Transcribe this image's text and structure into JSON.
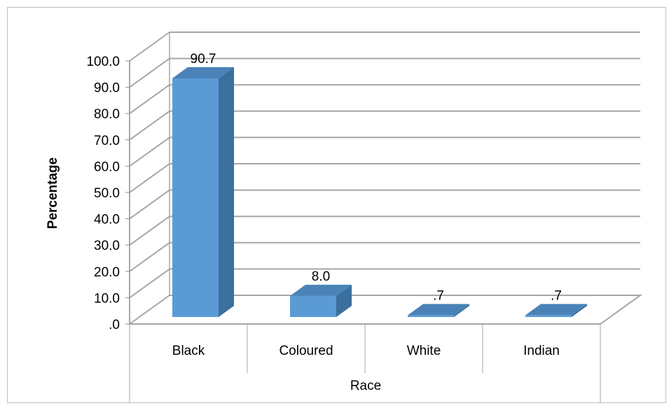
{
  "chart_data": {
    "type": "bar",
    "categories": [
      "Black",
      "Coloured",
      "White",
      "Indian"
    ],
    "values": [
      90.7,
      8.0,
      0.7,
      0.7
    ],
    "data_labels": [
      "90.7",
      "8.0",
      ".7",
      ".7"
    ],
    "y_tick_labels": [
      ".0",
      "10.0",
      "20.0",
      "30.0",
      "40.0",
      "50.0",
      "60.0",
      "70.0",
      "80.0",
      "90.0",
      "100.0"
    ],
    "title": "",
    "xlabel": "Race",
    "ylabel": "Percentage",
    "ylim": [
      0,
      100
    ],
    "grid": true,
    "legend": "none",
    "style": "3d-column"
  },
  "colors": {
    "bar_front": "#5B9BD5",
    "bar_side": "#3A6F9E",
    "bar_top": "#4A82B8",
    "grid": "#A6A6A6",
    "axis": "#8C8C8C",
    "text": "#000000",
    "frame": "#A6A6A6"
  }
}
